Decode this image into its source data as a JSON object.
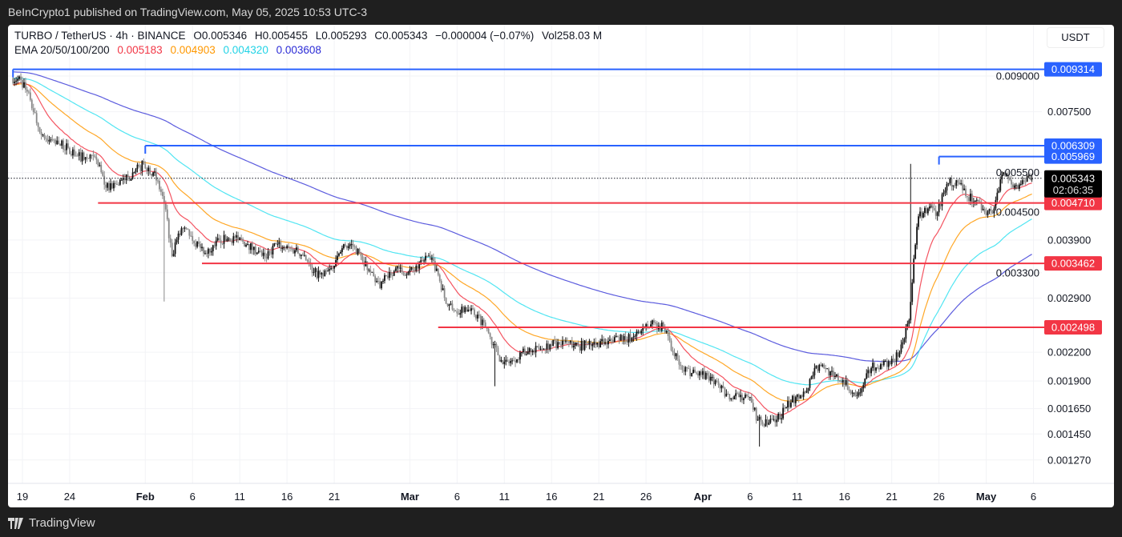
{
  "header": {
    "published": "BeInCrypto1 published on TradingView.com, May 05, 2025 10:53 UTC-3"
  },
  "legend": {
    "symbol": "TURBO / TetherUS · 4h · BINANCE",
    "open": "O0.005346",
    "high": "H0.005455",
    "low": "L0.005293",
    "close": "C0.005343",
    "change": "−0.000004 (−0.07%)",
    "volume": "Vol258.03 M",
    "ema_label": "EMA 20/50/100/200",
    "ema_values": [
      "0.005183",
      "0.004903",
      "0.004320",
      "0.003608"
    ]
  },
  "currency": "USDT",
  "footer": {
    "brand": "TradingView"
  },
  "colors": {
    "ema20": "#f23645",
    "ema50": "#ff9800",
    "ema100": "#33e0f0",
    "ema200": "#3f3fd8",
    "resistance": "#2962ff",
    "support": "#f23645",
    "candle_up": "#111111",
    "candle_down": "#888888"
  },
  "chart_data": {
    "type": "candlestick",
    "interval": "4h",
    "y_scale": "log",
    "ylim": [
      0.00118,
      0.0096
    ],
    "y_ticks": [
      "0.009000",
      "0.007500",
      "0.005500",
      "0.004500",
      "0.003900",
      "0.003300",
      "0.002900",
      "0.002200",
      "0.001900",
      "0.001650",
      "0.001450",
      "0.001270"
    ],
    "x_ticks": [
      {
        "date": "2025-01-19",
        "label": "19"
      },
      {
        "date": "2025-01-24",
        "label": "24"
      },
      {
        "date": "2025-02-01",
        "label": "Feb",
        "bold": true
      },
      {
        "date": "2025-02-06",
        "label": "6"
      },
      {
        "date": "2025-02-11",
        "label": "11"
      },
      {
        "date": "2025-02-16",
        "label": "16"
      },
      {
        "date": "2025-02-21",
        "label": "21"
      },
      {
        "date": "2025-03-01",
        "label": "Mar",
        "bold": true
      },
      {
        "date": "2025-03-06",
        "label": "6"
      },
      {
        "date": "2025-03-11",
        "label": "11"
      },
      {
        "date": "2025-03-16",
        "label": "16"
      },
      {
        "date": "2025-03-21",
        "label": "21"
      },
      {
        "date": "2025-03-26",
        "label": "26"
      },
      {
        "date": "2025-04-01",
        "label": "Apr",
        "bold": true
      },
      {
        "date": "2025-04-06",
        "label": "6"
      },
      {
        "date": "2025-04-11",
        "label": "11"
      },
      {
        "date": "2025-04-16",
        "label": "16"
      },
      {
        "date": "2025-04-21",
        "label": "21"
      },
      {
        "date": "2025-04-26",
        "label": "26"
      },
      {
        "date": "2025-05-01",
        "label": "May",
        "bold": true
      },
      {
        "date": "2025-05-06",
        "label": "6"
      }
    ],
    "start_date": "2025-01-18",
    "daily_close": [
      0.00882,
      0.00797,
      0.00676,
      0.00649,
      0.00636,
      0.00624,
      0.00599,
      0.00592,
      0.00587,
      0.00509,
      0.00519,
      0.00529,
      0.00551,
      0.00574,
      0.00551,
      0.00488,
      0.00359,
      0.00414,
      0.00398,
      0.00374,
      0.00366,
      0.0039,
      0.00393,
      0.0039,
      0.00382,
      0.00366,
      0.00355,
      0.00382,
      0.00374,
      0.0037,
      0.00361,
      0.00331,
      0.00324,
      0.00337,
      0.00374,
      0.00382,
      0.00359,
      0.00331,
      0.00305,
      0.00331,
      0.00337,
      0.00331,
      0.00337,
      0.00359,
      0.00337,
      0.00282,
      0.00271,
      0.00277,
      0.00266,
      0.00256,
      0.00229,
      0.00207,
      0.00211,
      0.0022,
      0.0022,
      0.00224,
      0.00229,
      0.00229,
      0.00231,
      0.00227,
      0.00229,
      0.00231,
      0.00229,
      0.00239,
      0.00234,
      0.00239,
      0.00249,
      0.00256,
      0.00249,
      0.0022,
      0.00201,
      0.00198,
      0.00196,
      0.00194,
      0.00183,
      0.00173,
      0.00175,
      0.00175,
      0.00156,
      0.00152,
      0.00156,
      0.00166,
      0.00175,
      0.00179,
      0.00203,
      0.00203,
      0.00194,
      0.00191,
      0.00179,
      0.00183,
      0.00203,
      0.00207,
      0.00207,
      0.0022,
      0.00259,
      0.0044,
      0.00458,
      0.00449,
      0.00519,
      0.00529,
      0.00488,
      0.00477,
      0.00449,
      0.00458,
      0.00551,
      0.00509,
      0.00529,
      0.005343
    ],
    "spikes": [
      {
        "date": "2025-02-03",
        "low": 0.00285
      },
      {
        "date": "2025-03-10",
        "low": 0.00185
      },
      {
        "date": "2025-04-07",
        "low": 0.00136
      },
      {
        "date": "2025-04-23",
        "high": 0.00575
      }
    ],
    "ema_start": {
      "ema20": 0.0086,
      "ema50": 0.0086,
      "ema100": 0.0089,
      "ema200": 0.0092
    },
    "last_price": "0.005343",
    "countdown": "02:06:35",
    "levels": [
      {
        "price": 0.009314,
        "label": "0.009314",
        "kind": "resistance",
        "from": "2025-01-18"
      },
      {
        "price": 0.006309,
        "label": "0.006309",
        "kind": "resistance",
        "from": "2025-02-01"
      },
      {
        "price": 0.005969,
        "label": "0.005969",
        "kind": "resistance",
        "from": "2025-04-26"
      },
      {
        "price": 0.00471,
        "label": "0.004710",
        "kind": "support",
        "from": "2025-01-27"
      },
      {
        "price": 0.003462,
        "label": "0.003462",
        "kind": "support",
        "from": "2025-02-07"
      },
      {
        "price": 0.002498,
        "label": "0.002498",
        "kind": "support",
        "from": "2025-03-04"
      }
    ]
  }
}
